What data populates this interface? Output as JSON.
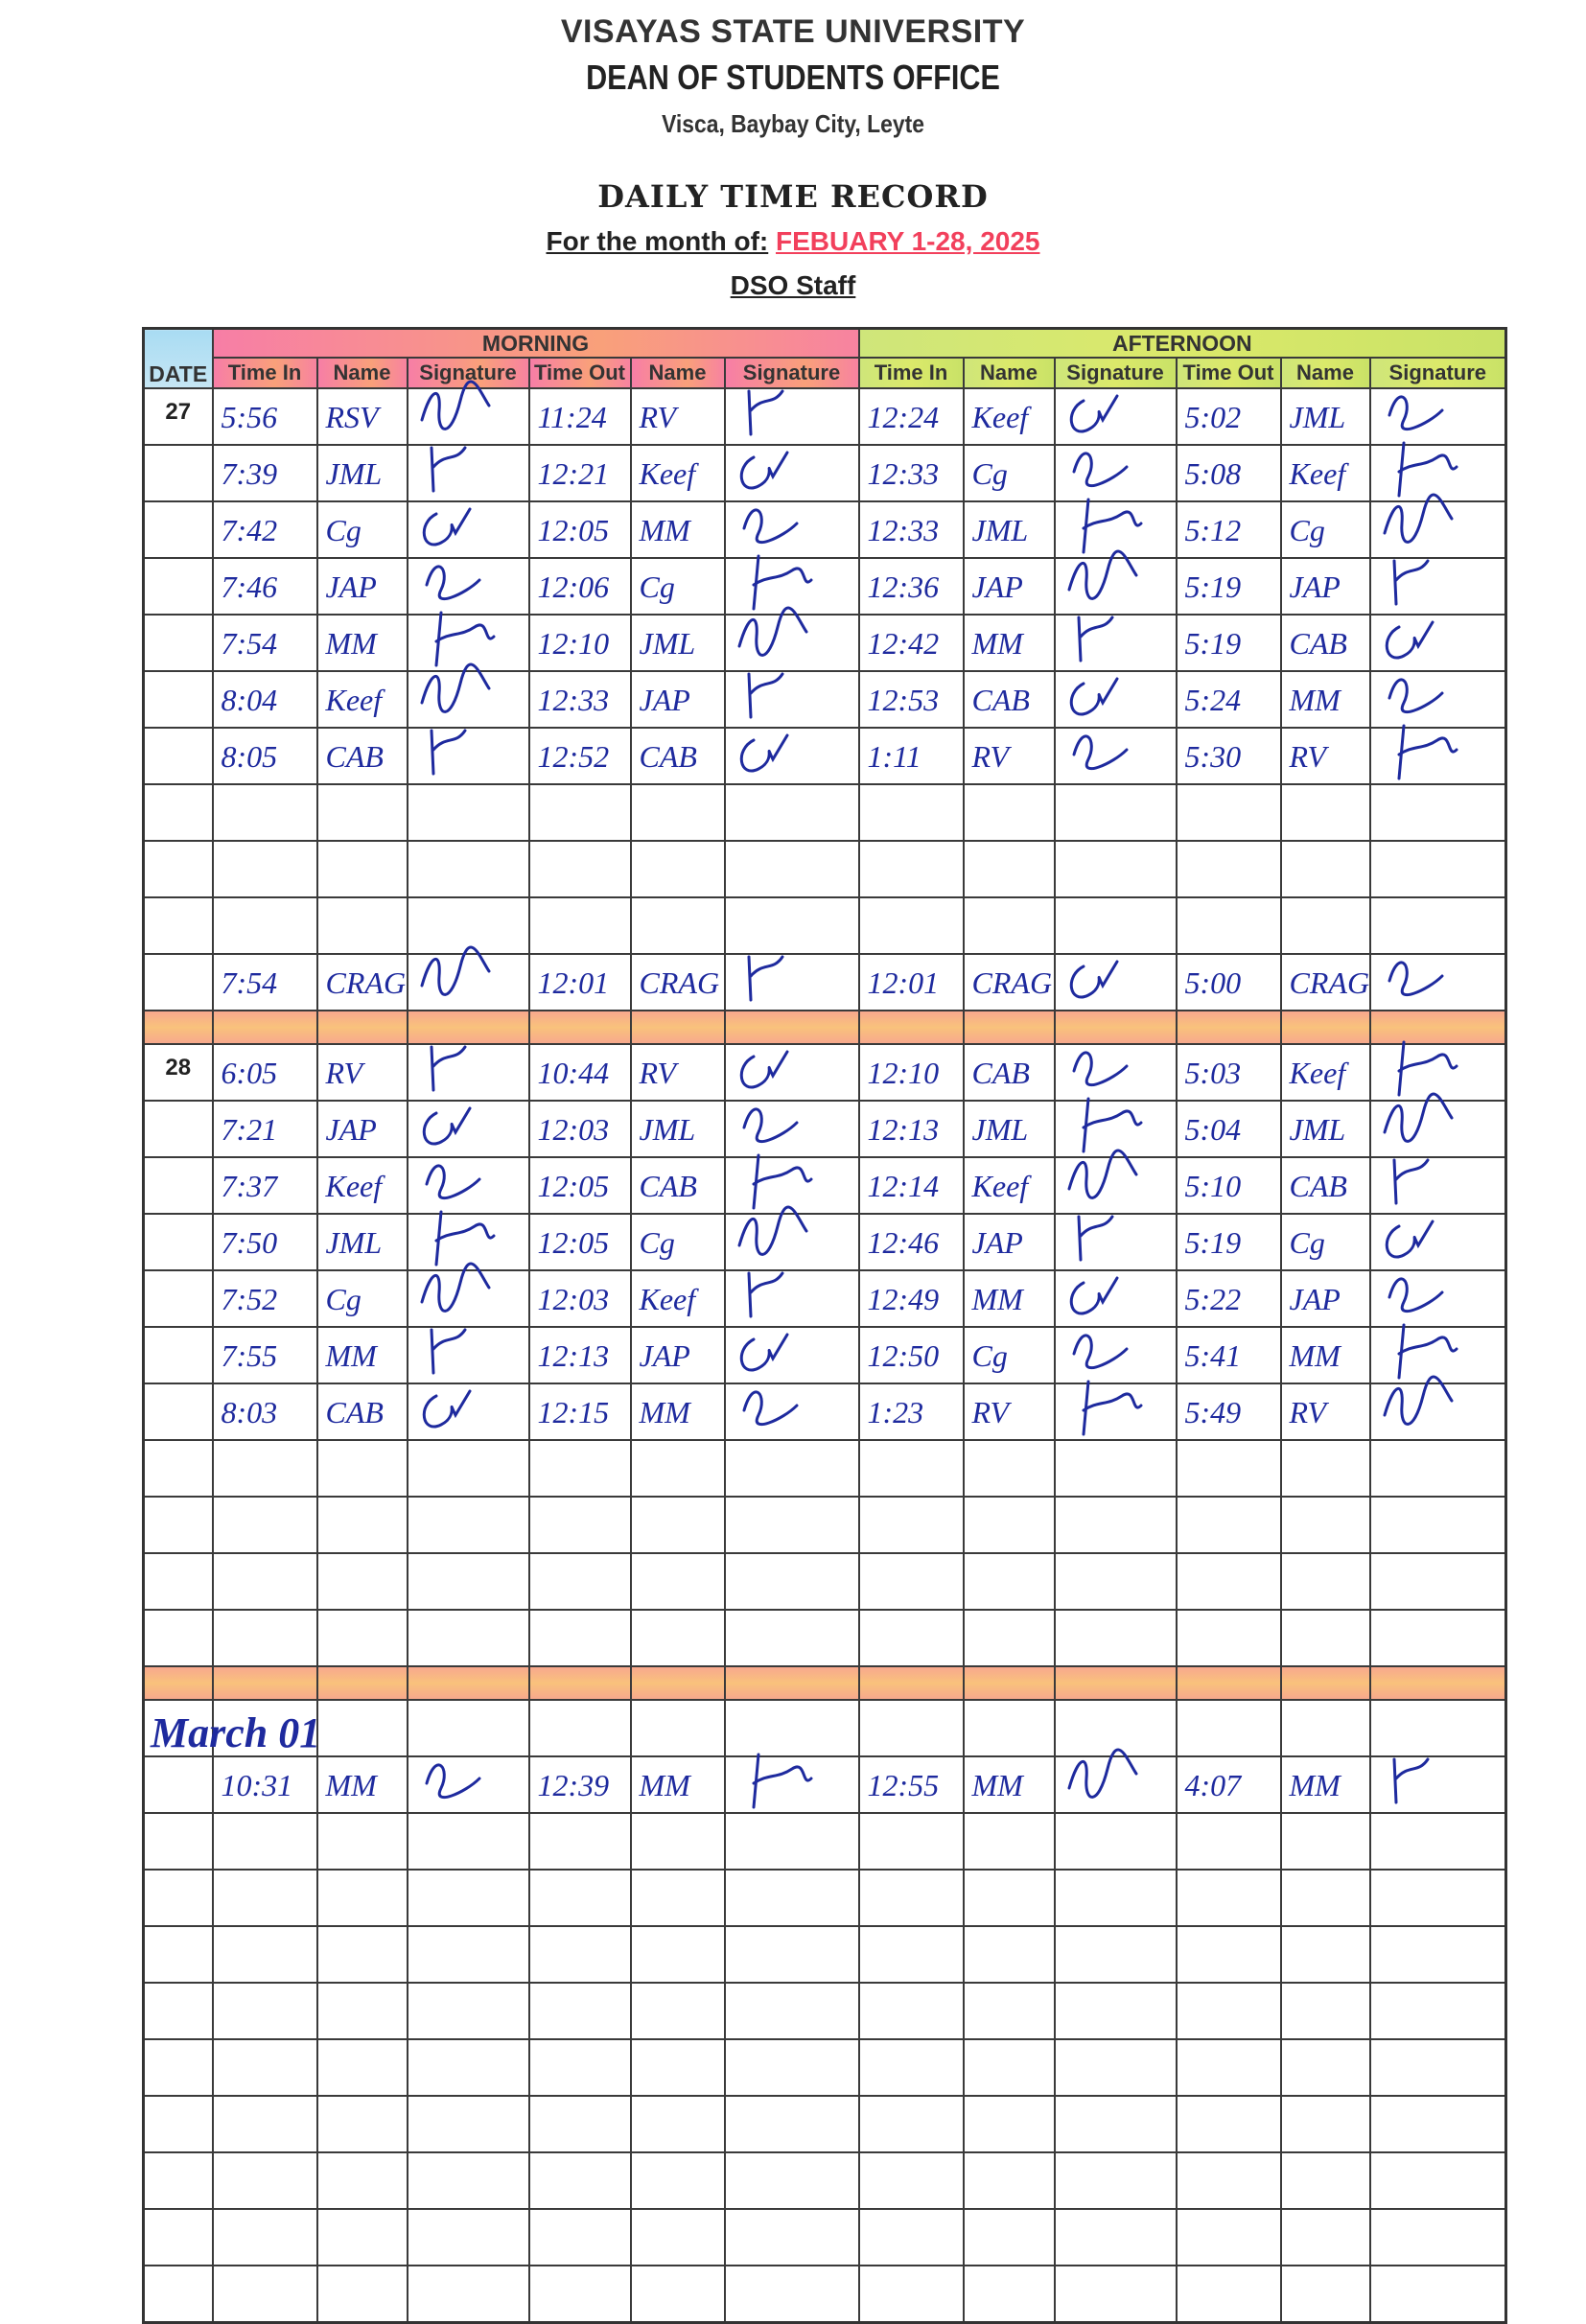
{
  "header": {
    "university": "VISAYAS STATE UNIVERSITY",
    "office": "DEAN OF STUDENTS OFFICE",
    "address": "Visca, Baybay City, Leyte",
    "form_title": "DAILY TIME RECORD",
    "month_label": "For the month of:",
    "month_value": "FEBUARY 1-28, 2025",
    "group": "DSO Staff"
  },
  "colors": {
    "ink": "#1e2a9e",
    "month_value": "#f2405c",
    "morning_header": "#f98ea0",
    "afternoon_header": "#d4e86a",
    "date_header": "#a9dcf3",
    "separator_band": "#f9b886"
  },
  "table": {
    "date_header": "DATE",
    "morning_header": "MORNING",
    "afternoon_header": "AFTERNOON",
    "columns": [
      "Time In",
      "Name",
      "Signature",
      "Time Out",
      "Name",
      "Signature",
      "Time In",
      "Name",
      "Signature",
      "Time Out",
      "Name",
      "Signature"
    ],
    "blocks": [
      {
        "date": "27",
        "rows": [
          {
            "am_in": "5:56",
            "am_in_name": "RSV",
            "am_out": "11:24",
            "am_out_name": "RV",
            "pm_in": "12:24",
            "pm_in_name": "Keef",
            "pm_out": "5:02",
            "pm_out_name": "JML"
          },
          {
            "am_in": "7:39",
            "am_in_name": "JML",
            "am_out": "12:21",
            "am_out_name": "Keef",
            "pm_in": "12:33",
            "pm_in_name": "Cg",
            "pm_out": "5:08",
            "pm_out_name": "Keef"
          },
          {
            "am_in": "7:42",
            "am_in_name": "Cg",
            "am_out": "12:05",
            "am_out_name": "MM",
            "pm_in": "12:33",
            "pm_in_name": "JML",
            "pm_out": "5:12",
            "pm_out_name": "Cg"
          },
          {
            "am_in": "7:46",
            "am_in_name": "JAP",
            "am_out": "12:06",
            "am_out_name": "Cg",
            "pm_in": "12:36",
            "pm_in_name": "JAP",
            "pm_out": "5:19",
            "pm_out_name": "JAP"
          },
          {
            "am_in": "7:54",
            "am_in_name": "MM",
            "am_out": "12:10",
            "am_out_name": "JML",
            "pm_in": "12:42",
            "pm_in_name": "MM",
            "pm_out": "5:19",
            "pm_out_name": "CAB"
          },
          {
            "am_in": "8:04",
            "am_in_name": "Keef",
            "am_out": "12:33",
            "am_out_name": "JAP",
            "pm_in": "12:53",
            "pm_in_name": "CAB",
            "pm_out": "5:24",
            "pm_out_name": "MM"
          },
          {
            "am_in": "8:05",
            "am_in_name": "CAB",
            "am_out": "12:52",
            "am_out_name": "CAB",
            "pm_in": "1:11",
            "pm_in_name": "RV",
            "pm_out": "5:30",
            "pm_out_name": "RV"
          },
          {},
          {},
          {},
          {
            "am_in": "7:54",
            "am_in_name": "CRAG",
            "am_out": "12:01",
            "am_out_name": "CRAG",
            "pm_in": "12:01",
            "pm_in_name": "CRAG",
            "pm_out": "5:00",
            "pm_out_name": "CRAG"
          }
        ]
      },
      {
        "date": "28",
        "rows": [
          {
            "am_in": "6:05",
            "am_in_name": "RV",
            "am_out": "10:44",
            "am_out_name": "RV",
            "pm_in": "12:10",
            "pm_in_name": "CAB",
            "pm_out": "5:03",
            "pm_out_name": "Keef"
          },
          {
            "am_in": "7:21",
            "am_in_name": "JAP",
            "am_out": "12:03",
            "am_out_name": "JML",
            "pm_in": "12:13",
            "pm_in_name": "JML",
            "pm_out": "5:04",
            "pm_out_name": "JML"
          },
          {
            "am_in": "7:37",
            "am_in_name": "Keef",
            "am_out": "12:05",
            "am_out_name": "CAB",
            "pm_in": "12:14",
            "pm_in_name": "Keef",
            "pm_out": "5:10",
            "pm_out_name": "CAB"
          },
          {
            "am_in": "7:50",
            "am_in_name": "JML",
            "am_out": "12:05",
            "am_out_name": "Cg",
            "pm_in": "12:46",
            "pm_in_name": "JAP",
            "pm_out": "5:19",
            "pm_out_name": "Cg"
          },
          {
            "am_in": "7:52",
            "am_in_name": "Cg",
            "am_out": "12:03",
            "am_out_name": "Keef",
            "pm_in": "12:49",
            "pm_in_name": "MM",
            "pm_out": "5:22",
            "pm_out_name": "JAP"
          },
          {
            "am_in": "7:55",
            "am_in_name": "MM",
            "am_out": "12:13",
            "am_out_name": "JAP",
            "pm_in": "12:50",
            "pm_in_name": "Cg",
            "pm_out": "5:41",
            "pm_out_name": "MM"
          },
          {
            "am_in": "8:03",
            "am_in_name": "CAB",
            "am_out": "12:15",
            "am_out_name": "MM",
            "pm_in": "1:23",
            "pm_in_name": "RV",
            "pm_out": "5:49",
            "pm_out_name": "RV"
          },
          {},
          {},
          {},
          {}
        ]
      },
      {
        "date": "",
        "handwritten_date": "March 01",
        "rows": [
          {},
          {
            "am_in": "10:31",
            "am_in_name": "MM",
            "am_out": "12:39",
            "am_out_name": "MM",
            "pm_in": "12:55",
            "pm_in_name": "MM",
            "pm_out": "4:07",
            "pm_out_name": "MM"
          },
          {},
          {},
          {},
          {},
          {},
          {},
          {},
          {},
          {}
        ]
      }
    ]
  }
}
